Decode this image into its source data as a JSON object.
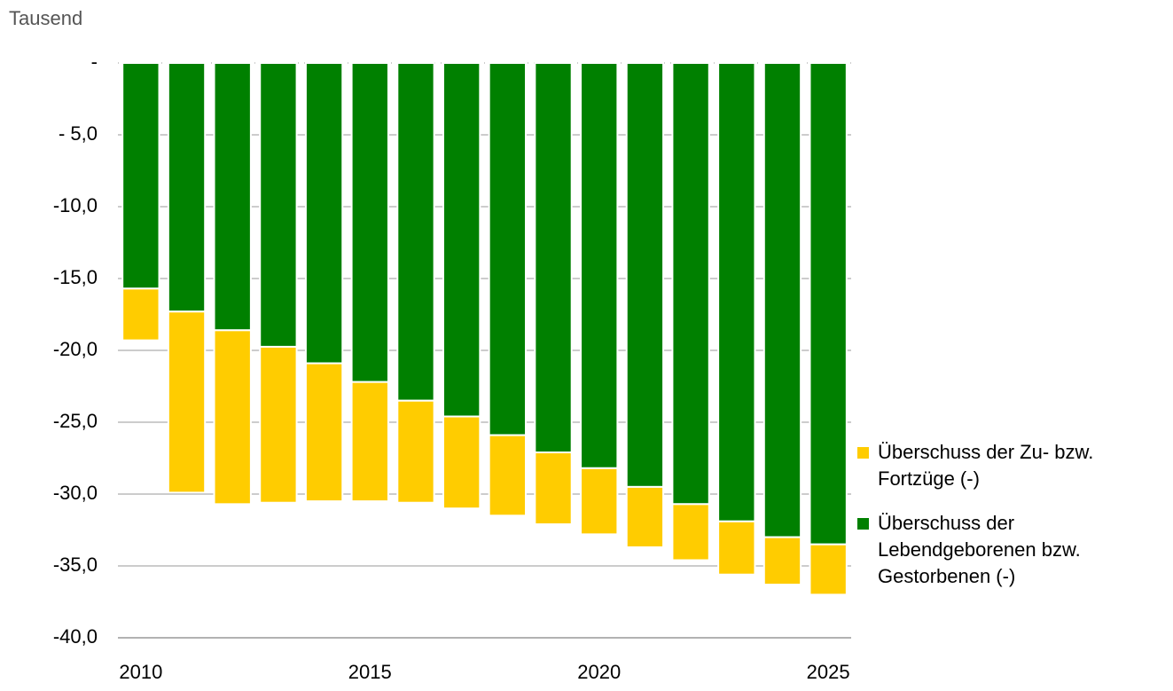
{
  "chart_data": {
    "type": "bar",
    "stacked": true,
    "y_axis_label": "Tausend",
    "categories": [
      2010,
      null,
      null,
      null,
      null,
      2015,
      null,
      null,
      null,
      null,
      2020,
      null,
      null,
      null,
      null,
      2025
    ],
    "series": [
      {
        "name": "Überschuss der Lebendgeborenen bzw. Gestorbenen (-)",
        "color": "#008000",
        "values": [
          -15.7,
          -17.3,
          -18.6,
          -19.75,
          -20.9,
          -22.2,
          -23.5,
          -24.6,
          -25.9,
          -27.1,
          -28.2,
          -29.5,
          -30.7,
          -31.9,
          -33.0,
          -33.5
        ]
      },
      {
        "name": "Überschuss der Zu- bzw. Fortzüge (-)",
        "color": "#ffcc00",
        "values": [
          -3.6,
          -12.6,
          -12.1,
          -10.85,
          -9.6,
          -8.3,
          -7.1,
          -6.4,
          -5.6,
          -5.0,
          -4.6,
          -4.2,
          -3.9,
          -3.7,
          -3.3,
          -3.5
        ]
      }
    ],
    "ylim": [
      -40,
      0
    ],
    "yticks": [
      {
        "value": 0,
        "label": "-"
      },
      {
        "value": -5,
        "label": "- 5,0"
      },
      {
        "value": -10,
        "label": "-10,0"
      },
      {
        "value": -15,
        "label": "-15,0"
      },
      {
        "value": -20,
        "label": "-20,0"
      },
      {
        "value": -25,
        "label": "-25,0"
      },
      {
        "value": -30,
        "label": "-30,0"
      },
      {
        "value": -35,
        "label": "-35,0"
      },
      {
        "value": -40,
        "label": "-40,0"
      }
    ],
    "grid": true,
    "legend": "right"
  }
}
